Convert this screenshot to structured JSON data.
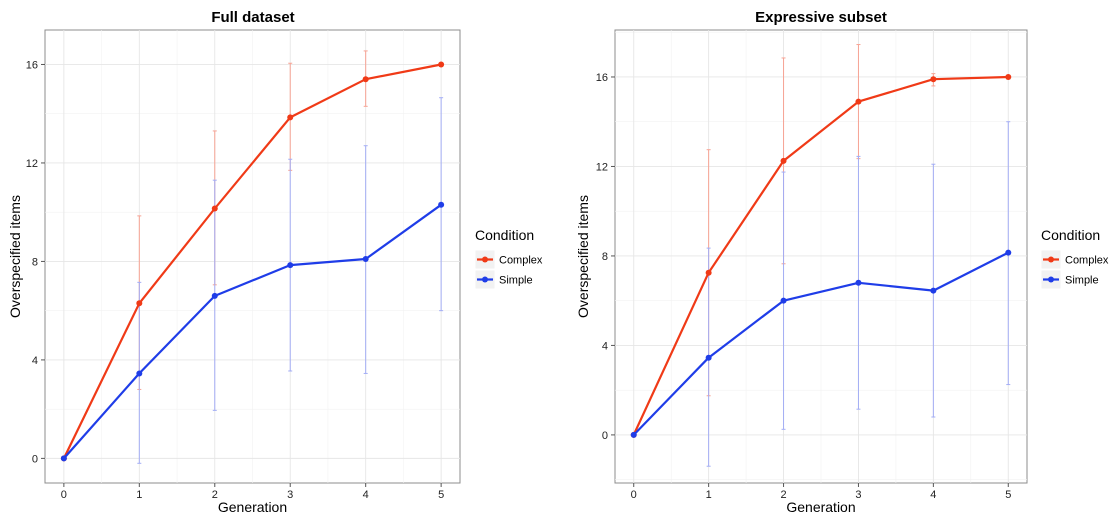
{
  "chart_data": [
    {
      "type": "line",
      "title": "Full dataset",
      "xlabel": "Generation",
      "ylabel": "Overspecified items",
      "x": [
        0,
        1,
        2,
        3,
        4,
        5
      ],
      "xticks": [
        0,
        1,
        2,
        3,
        4,
        5
      ],
      "yticks": [
        0,
        4,
        8,
        12,
        16
      ],
      "xlim": [
        -0.25,
        5.25
      ],
      "ylim": [
        -1.0,
        17.4
      ],
      "grid": true,
      "legend": {
        "title": "Condition",
        "position": "right"
      },
      "series": [
        {
          "name": "Complex",
          "color": "#f03a17",
          "values": [
            0,
            6.3,
            10.15,
            13.85,
            15.4,
            16.0
          ],
          "error_low": [
            null,
            2.8,
            7.05,
            11.7,
            14.3,
            null
          ],
          "error_high": [
            null,
            9.85,
            13.3,
            16.05,
            16.55,
            null
          ]
        },
        {
          "name": "Simple",
          "color": "#1f3de8",
          "values": [
            0,
            3.45,
            6.6,
            7.85,
            8.1,
            10.3
          ],
          "error_low": [
            null,
            -0.2,
            1.95,
            3.55,
            3.45,
            6.0
          ],
          "error_high": [
            null,
            7.15,
            11.3,
            12.15,
            12.7,
            14.65
          ]
        }
      ]
    },
    {
      "type": "line",
      "title": "Expressive subset",
      "xlabel": "Generation",
      "ylabel": "Overspecified items",
      "x": [
        0,
        1,
        2,
        3,
        4,
        5
      ],
      "xticks": [
        0,
        1,
        2,
        3,
        4,
        5
      ],
      "yticks": [
        0,
        4,
        8,
        12,
        16
      ],
      "xlim": [
        -0.25,
        5.25
      ],
      "ylim": [
        -2.15,
        18.1
      ],
      "grid": true,
      "legend": {
        "title": "Condition",
        "position": "right"
      },
      "series": [
        {
          "name": "Complex",
          "color": "#f03a17",
          "values": [
            0,
            7.25,
            12.25,
            14.9,
            15.9,
            16.0
          ],
          "error_low": [
            null,
            1.75,
            7.65,
            12.35,
            15.6,
            null
          ],
          "error_high": [
            null,
            12.75,
            16.85,
            17.45,
            16.15,
            null
          ]
        },
        {
          "name": "Simple",
          "color": "#1f3de8",
          "values": [
            0,
            3.45,
            6.0,
            6.8,
            6.45,
            8.15
          ],
          "error_low": [
            null,
            -1.4,
            0.25,
            1.15,
            0.8,
            2.25
          ],
          "error_high": [
            null,
            8.35,
            11.75,
            12.45,
            12.1,
            14.0
          ]
        }
      ]
    }
  ]
}
